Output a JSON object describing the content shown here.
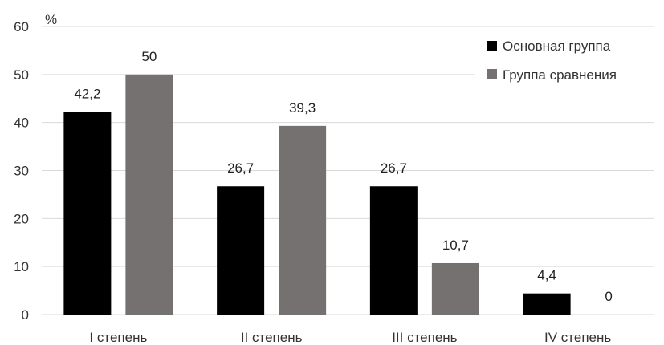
{
  "chart_data": {
    "type": "bar",
    "categories": [
      "I степень",
      "II степень",
      "III степень",
      "IV степень"
    ],
    "series": [
      {
        "name": "Основная группа",
        "color": "#000000",
        "values": [
          42.2,
          26.7,
          26.7,
          4.4
        ],
        "labels": [
          "42,2",
          "26,7",
          "26,7",
          "4,4"
        ]
      },
      {
        "name": "Группа сравнения",
        "color": "#767171",
        "values": [
          50,
          39.3,
          10.7,
          0
        ],
        "labels": [
          "50",
          "39,3",
          "10,7",
          "0"
        ]
      }
    ],
    "ylabel": "%",
    "ylim": [
      0,
      60
    ],
    "yticks": [
      0,
      10,
      20,
      30,
      40,
      50,
      60
    ],
    "grid": true,
    "legend_position": "top-right"
  }
}
